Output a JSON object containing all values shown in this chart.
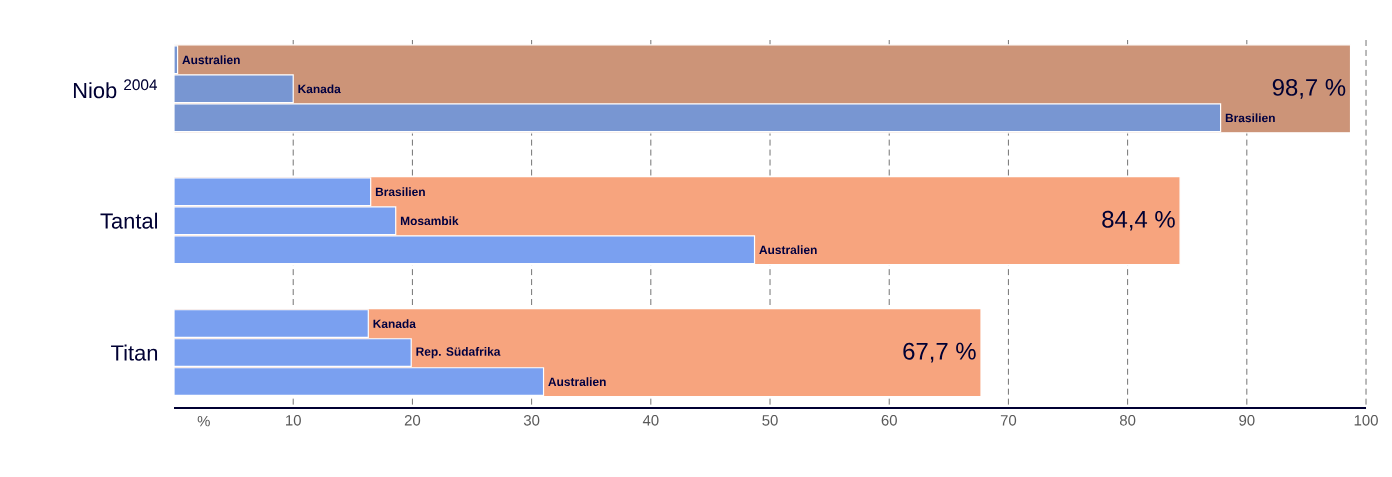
{
  "chart_data": {
    "type": "bar",
    "orientation": "horizontal",
    "categories": [
      "Niob $^{2004}$",
      "Tantal",
      "Titan"
    ],
    "series": [
      {
        "colors": [
          "#cc9478",
          "#f7a47e",
          "#f7a47e"
        ],
        "values": [
          98.7,
          84.4,
          67.7
        ],
        "value_labels": [
          "98,7 %",
          "84,4 %",
          "67,7 %"
        ]
      },
      {
        "colors": [
          "#7896d2",
          "#7aa0f0",
          "#7aa0f0"
        ],
        "values": [
          0.3,
          16.5,
          16.3
        ]
      },
      {
        "colors": [
          "#7896d2",
          "#7aa0f0",
          "#7aa0f0"
        ],
        "values": [
          10,
          18.6,
          19.9
        ]
      },
      {
        "colors": [
          "#7896d2",
          "#7aa0f0",
          "#7aa0f0"
        ],
        "values": [
          87.8,
          48.7,
          31.0
        ]
      }
    ],
    "annotations": [
      "Australien",
      "Kanada",
      "Brasilien",
      "Brasilien",
      "Mosambik",
      "Australien",
      "Kanada",
      "Rep. Südafrika",
      "Australien"
    ],
    "xlabel": "%",
    "xlim": [
      0,
      100
    ],
    "xticks": [
      10,
      20,
      30,
      40,
      50,
      60,
      70,
      80,
      90,
      100
    ],
    "grid": "x"
  }
}
